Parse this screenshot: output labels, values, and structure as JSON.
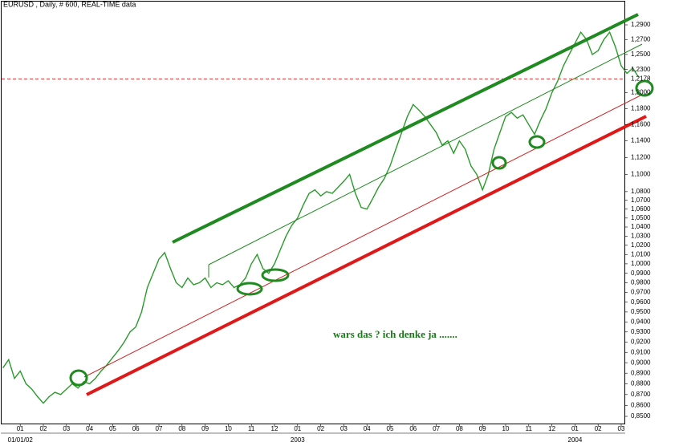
{
  "chart_data": {
    "type": "line",
    "title": "EURUSD , Daily, # 600, REAL-TIME data",
    "annotation": "wars das ? ich denke ja .......",
    "period_labels": [
      "01/01/02",
      "2003",
      "2004"
    ],
    "categories": [
      null,
      null,
      null,
      "01",
      null,
      null,
      null,
      "02",
      null,
      null,
      null,
      "03",
      null,
      null,
      null,
      "04",
      null,
      null,
      null,
      "05",
      null,
      null,
      null,
      "06",
      null,
      null,
      null,
      "07",
      null,
      null,
      null,
      "08",
      null,
      null,
      null,
      "09",
      null,
      null,
      null,
      "10",
      null,
      null,
      null,
      "11",
      null,
      null,
      null,
      "12",
      null,
      null,
      null,
      "01",
      null,
      null,
      null,
      "02",
      null,
      null,
      null,
      "03",
      null,
      null,
      null,
      "04",
      null,
      null,
      null,
      "05",
      null,
      null,
      null,
      "06",
      null,
      null,
      null,
      "07",
      null,
      null,
      null,
      "08",
      null,
      null,
      null,
      "09",
      null,
      null,
      null,
      "10",
      null,
      null,
      null,
      "11",
      null,
      null,
      null,
      "12",
      null,
      null,
      null,
      "01",
      null,
      null,
      null,
      "02",
      null,
      null,
      null,
      "03",
      null,
      null,
      null
    ],
    "series": [
      {
        "name": "EURUSD",
        "color": "#2a9a2a",
        "values": [
          0.895,
          0.903,
          0.885,
          0.892,
          0.88,
          0.875,
          0.868,
          0.862,
          0.868,
          0.872,
          0.87,
          0.875,
          0.88,
          0.876,
          0.882,
          0.88,
          0.885,
          0.892,
          0.898,
          0.905,
          0.912,
          0.92,
          0.93,
          0.935,
          0.95,
          0.975,
          0.99,
          1.005,
          1.012,
          0.995,
          0.98,
          0.975,
          0.985,
          0.978,
          0.98,
          0.985,
          0.975,
          0.98,
          0.978,
          0.982,
          0.975,
          0.978,
          0.985,
          1.0,
          1.01,
          0.995,
          0.99,
          1.0,
          1.015,
          1.03,
          1.042,
          1.05,
          1.065,
          1.078,
          1.082,
          1.075,
          1.08,
          1.078,
          1.085,
          1.092,
          1.1,
          1.078,
          1.062,
          1.06,
          1.072,
          1.085,
          1.095,
          1.11,
          1.13,
          1.15,
          1.17,
          1.185,
          1.178,
          1.17,
          1.16,
          1.15,
          1.135,
          1.14,
          1.125,
          1.14,
          1.13,
          1.11,
          1.1,
          1.082,
          1.1,
          1.13,
          1.15,
          1.17,
          1.175,
          1.168,
          1.172,
          1.16,
          1.148,
          1.165,
          1.18,
          1.2,
          1.215,
          1.235,
          1.25,
          1.265,
          1.28,
          1.27,
          1.25,
          1.255,
          1.27,
          1.28,
          1.26,
          1.235,
          1.225,
          1.232,
          1.22
        ]
      }
    ],
    "log": true,
    "ylim": [
      0.8435,
      1.319
    ],
    "yticks": [
      {
        "value": 0.85,
        "label": "0,8500"
      },
      {
        "value": 0.86,
        "label": "0,8600"
      },
      {
        "value": 0.87,
        "label": "0,8700"
      },
      {
        "value": 0.88,
        "label": "0,8800"
      },
      {
        "value": 0.89,
        "label": "0,8900"
      },
      {
        "value": 0.9,
        "label": "0,9000"
      },
      {
        "value": 0.91,
        "label": "0,9100"
      },
      {
        "value": 0.92,
        "label": "0,9200"
      },
      {
        "value": 0.93,
        "label": "0,9300"
      },
      {
        "value": 0.94,
        "label": "0,9400"
      },
      {
        "value": 0.95,
        "label": "0,9500"
      },
      {
        "value": 0.96,
        "label": "0,9600"
      },
      {
        "value": 0.97,
        "label": "0,9700"
      },
      {
        "value": 0.98,
        "label": "0,9800"
      },
      {
        "value": 0.99,
        "label": "0,9900"
      },
      {
        "value": 1.0,
        "label": "1,0000"
      },
      {
        "value": 1.01,
        "label": "1,0100"
      },
      {
        "value": 1.02,
        "label": "1,0200"
      },
      {
        "value": 1.03,
        "label": "1,0300"
      },
      {
        "value": 1.04,
        "label": "1,0400"
      },
      {
        "value": 1.05,
        "label": "1,0500"
      },
      {
        "value": 1.06,
        "label": "1,0600"
      },
      {
        "value": 1.07,
        "label": "1,0700"
      },
      {
        "value": 1.08,
        "label": "1,0800"
      },
      {
        "value": 1.1,
        "label": "1,1000"
      },
      {
        "value": 1.12,
        "label": "1,1200"
      },
      {
        "value": 1.14,
        "label": "1,1400"
      },
      {
        "value": 1.16,
        "label": "1,1600"
      },
      {
        "value": 1.18,
        "label": "1,1800"
      },
      {
        "value": 1.2,
        "label": "1,2000"
      },
      {
        "value": 1.23,
        "label": "1,2300"
      },
      {
        "value": 1.25,
        "label": "1,2500"
      },
      {
        "value": 1.27,
        "label": "1,2700"
      },
      {
        "value": 1.29,
        "label": "1,2900"
      }
    ],
    "price_line": {
      "value": 1.2178,
      "label": "1,2178",
      "color": "#e03030"
    }
  }
}
